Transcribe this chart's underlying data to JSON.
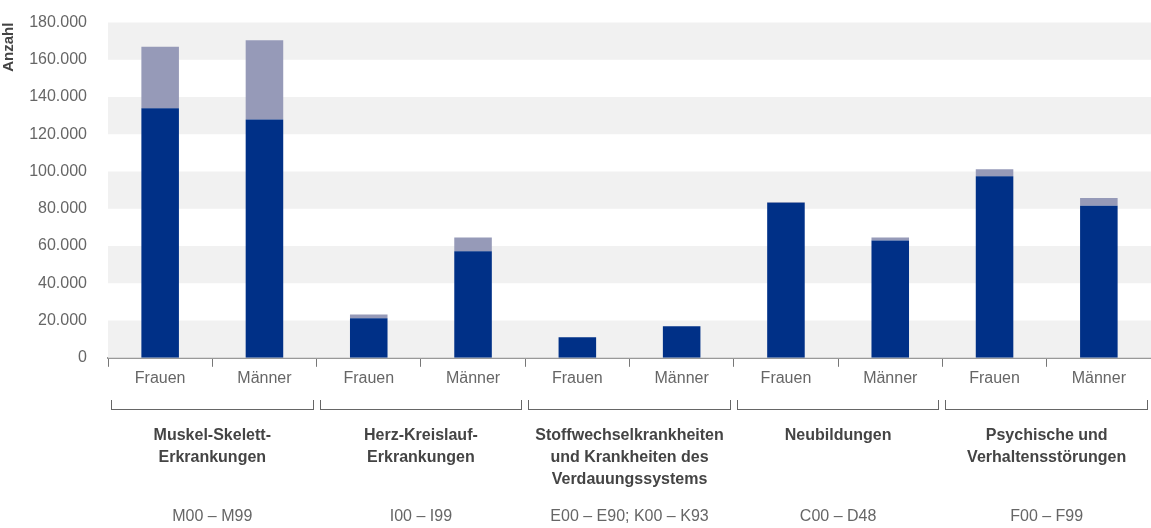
{
  "chart_data": {
    "type": "bar",
    "stacked": true,
    "ylabel": "Anzahl",
    "categories": [
      "Frauen",
      "Männer",
      "Frauen",
      "Männer",
      "Frauen",
      "Männer",
      "Frauen",
      "Männer",
      "Frauen",
      "Männer"
    ],
    "series": [
      {
        "color": "#003087",
        "values": [
          134000,
          128000,
          21200,
          57200,
          11100,
          17000,
          83200,
          63000,
          97500,
          81600
        ]
      },
      {
        "color": "#969ab8",
        "values": [
          33000,
          42500,
          2100,
          7400,
          0,
          0,
          500,
          1600,
          3700,
          4200
        ]
      }
    ],
    "ylim": [
      0,
      180000
    ],
    "yticks": [
      {
        "value": 0,
        "label": "0"
      },
      {
        "value": 20000,
        "label": "20.000"
      },
      {
        "value": 40000,
        "label": "40.000"
      },
      {
        "value": 60000,
        "label": "60.000"
      },
      {
        "value": 80000,
        "label": "80.000"
      },
      {
        "value": 100000,
        "label": "100.000"
      },
      {
        "value": 120000,
        "label": "120.000"
      },
      {
        "value": 140000,
        "label": "140.000"
      },
      {
        "value": 160000,
        "label": "160.000"
      },
      {
        "value": 180000,
        "label": "180.000"
      }
    ],
    "legend": false,
    "bands": [
      {
        "axis": "y",
        "from": 0,
        "to": 20000,
        "color": "#f1f1f1"
      },
      {
        "axis": "y",
        "from": 40000,
        "to": 60000,
        "color": "#f1f1f1"
      },
      {
        "axis": "y",
        "from": 80000,
        "to": 100000,
        "color": "#f1f1f1"
      },
      {
        "axis": "y",
        "from": 120000,
        "to": 140000,
        "color": "#f1f1f1"
      },
      {
        "axis": "y",
        "from": 160000,
        "to": 180000,
        "color": "#f1f1f1"
      }
    ],
    "annotations": [
      "Muskel-Skelett-\nErkrankungen",
      "Herz-Kreislauf-\nErkrankungen",
      "Stoffwechselkrankheiten\nund Krankheiten des\nVerdauungssystems",
      "Neubildungen",
      "Psychische und\nVerhaltensstörungen",
      "M00 – M99",
      "I00 – I99",
      "E00 – E90; K00 – K93",
      "C00 – D48",
      "F00 – F99"
    ]
  }
}
